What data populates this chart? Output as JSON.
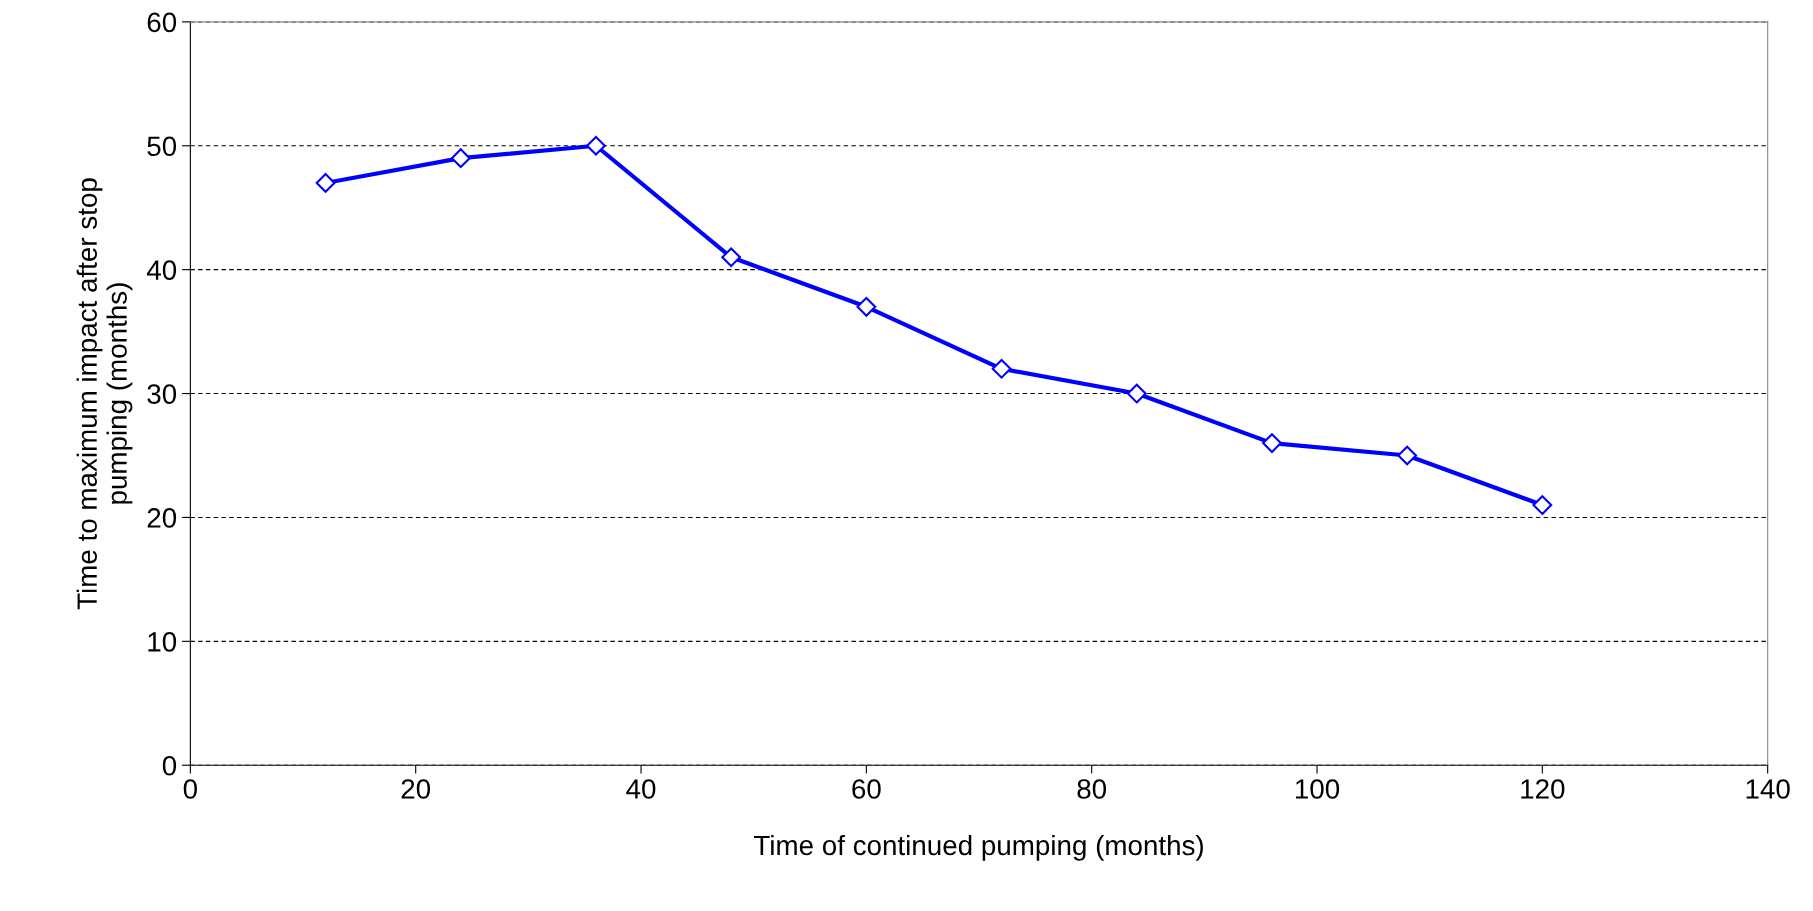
{
  "chart_data": {
    "type": "line",
    "xlabel": "Time of continued pumping (months)",
    "ylabel": "Time to maximum impact after stop\npumping (months)",
    "x": [
      12,
      24,
      36,
      48,
      60,
      72,
      84,
      96,
      108,
      120
    ],
    "series": [
      {
        "color": "#0000ff",
        "values": [
          47,
          49,
          50,
          41,
          37,
          32,
          30,
          26,
          25,
          21
        ]
      }
    ],
    "xlim": [
      0,
      140
    ],
    "xticks": [
      0,
      20,
      40,
      60,
      80,
      100,
      120,
      140
    ],
    "ylim": [
      0,
      60
    ],
    "yticks": [
      0,
      10,
      20,
      30,
      40,
      50,
      60
    ],
    "grid": "y",
    "marker": "diamond",
    "line_style": "solid",
    "legend": false
  }
}
